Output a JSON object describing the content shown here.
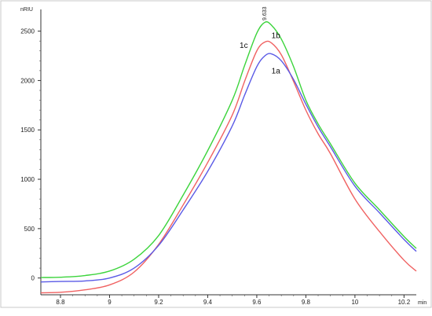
{
  "chart_data": {
    "type": "line",
    "title": "",
    "xlabel": "",
    "ylabel": "",
    "x_unit": "min",
    "y_unit": "nRIU",
    "xlim": [
      8.72,
      10.25
    ],
    "ylim": [
      -170,
      2720
    ],
    "x_ticks": [
      8.8,
      9,
      9.2,
      9.4,
      9.6,
      9.8,
      10,
      10.2
    ],
    "x_tick_labels": [
      "8.8",
      "9",
      "9.2",
      "9.4",
      "9.6",
      "9.8",
      "10",
      "10.2"
    ],
    "y_ticks": [
      0,
      500,
      1000,
      1500,
      2000,
      2500
    ],
    "y_tick_labels": [
      "0",
      "500",
      "1000",
      "1500",
      "2000",
      "2500"
    ],
    "grid": false,
    "legend": "none",
    "peak_annotation": {
      "x": 9.633,
      "label": "9.633"
    },
    "series": [
      {
        "name": "1a",
        "color": "#5a5ae6",
        "label_at": [
          9.66,
          2070
        ],
        "x": [
          8.72,
          8.8,
          8.9,
          9.0,
          9.1,
          9.2,
          9.3,
          9.4,
          9.5,
          9.55,
          9.6,
          9.633,
          9.66,
          9.7,
          9.75,
          9.8,
          9.85,
          9.9,
          10.0,
          10.1,
          10.2,
          10.25
        ],
        "y": [
          -40,
          -35,
          -30,
          0,
          100,
          330,
          690,
          1080,
          1540,
          1850,
          2140,
          2250,
          2270,
          2200,
          2010,
          1760,
          1530,
          1330,
          930,
          660,
          390,
          270
        ]
      },
      {
        "name": "1b",
        "color": "#f06262",
        "label_at": [
          9.66,
          2430
        ],
        "x": [
          8.72,
          8.8,
          8.9,
          9.0,
          9.1,
          9.2,
          9.3,
          9.4,
          9.5,
          9.55,
          9.6,
          9.633,
          9.66,
          9.7,
          9.75,
          9.8,
          9.85,
          9.9,
          10.0,
          10.1,
          10.2,
          10.25
        ],
        "y": [
          -150,
          -145,
          -120,
          -70,
          60,
          340,
          740,
          1170,
          1650,
          1990,
          2300,
          2390,
          2380,
          2260,
          1990,
          1700,
          1460,
          1260,
          800,
          470,
          180,
          70
        ]
      },
      {
        "name": "1c",
        "color": "#3cd43c",
        "label_at": [
          9.53,
          2330
        ],
        "x": [
          8.72,
          8.8,
          8.9,
          9.0,
          9.1,
          9.2,
          9.3,
          9.4,
          9.5,
          9.55,
          9.6,
          9.633,
          9.66,
          9.7,
          9.75,
          9.8,
          9.85,
          9.9,
          10.0,
          10.1,
          10.2,
          10.25
        ],
        "y": [
          5,
          8,
          25,
          70,
          190,
          430,
          840,
          1290,
          1800,
          2150,
          2480,
          2590,
          2560,
          2420,
          2140,
          1800,
          1560,
          1360,
          960,
          690,
          420,
          300
        ]
      }
    ]
  }
}
